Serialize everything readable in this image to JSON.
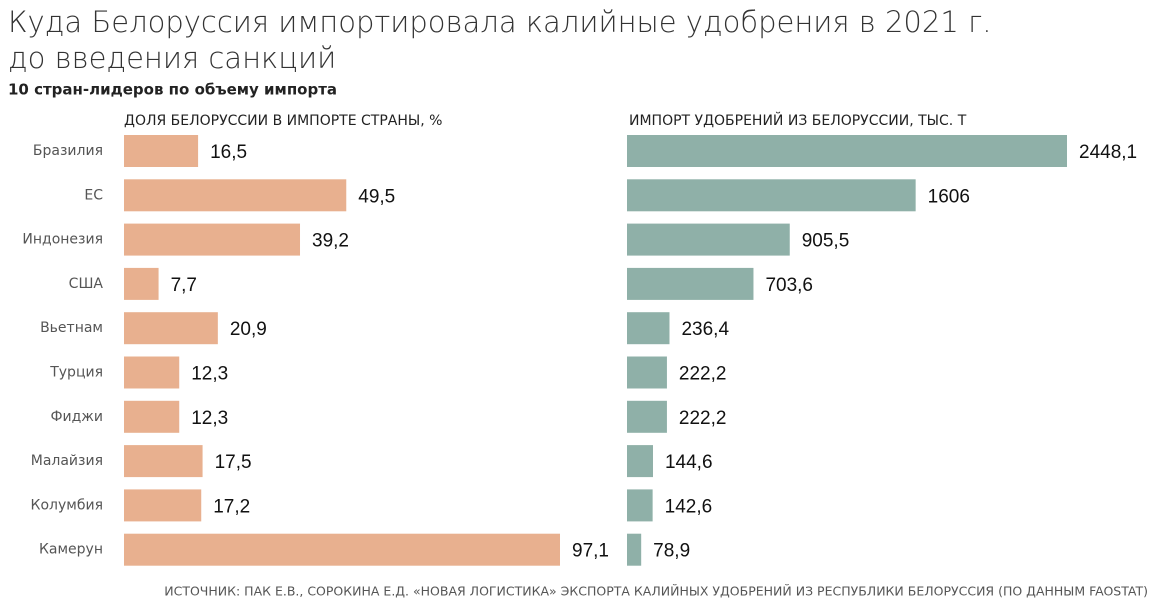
{
  "title": "Куда Белоруссия импортировала калийные удобрения в 2021 г.",
  "title_line2": "до введения санкций",
  "subtitle": "10 стран-лидеров по объему импорта",
  "source": "ИСТОЧНИК: ПАК Е.В., СОРОКИНА Е.Д. «НОВАЯ ЛОГИСТИКА» ЭКСПОРТА КАЛИЙНЫХ УДОБРЕНИЙ ИЗ РЕСПУБЛИКИ БЕЛОРУССИЯ (ПО ДАННЫМ FAOSTAT)",
  "chart_data": [
    {
      "type": "hbar",
      "title": "ДОЛЯ БЕЛОРУССИИ В ИМПОРТЕ СТРАНЫ, %",
      "color": "#e8b08f",
      "categories": [
        "Бразилия",
        "ЕС",
        "Индонезия",
        "США",
        "Вьетнам",
        "Турция",
        "Фиджи",
        "Малайзия",
        "Колумбия",
        "Камерун"
      ],
      "values": [
        16.5,
        49.5,
        39.2,
        7.7,
        20.9,
        12.3,
        12.3,
        17.5,
        17.2,
        97.1
      ],
      "value_labels": [
        "16,5",
        "49,5",
        "39,2",
        "7,7",
        "20,9",
        "12,3",
        "12,3",
        "17,5",
        "17,2",
        "97,1"
      ]
    },
    {
      "type": "hbar",
      "title": "ИМПОРТ УДОБРЕНИЙ ИЗ БЕЛОРУССИИ, ТЫС. Т",
      "color": "#8fb0a8",
      "values": [
        2448.1,
        1606,
        905.5,
        703.6,
        236.4,
        222.2,
        222.2,
        144.6,
        142.6,
        78.9
      ],
      "value_labels": [
        "2448,1",
        "1606",
        "905,5",
        "703,6",
        "236,4",
        "222,2",
        "222,2",
        "144,6",
        "142,6",
        "78,9"
      ]
    }
  ]
}
